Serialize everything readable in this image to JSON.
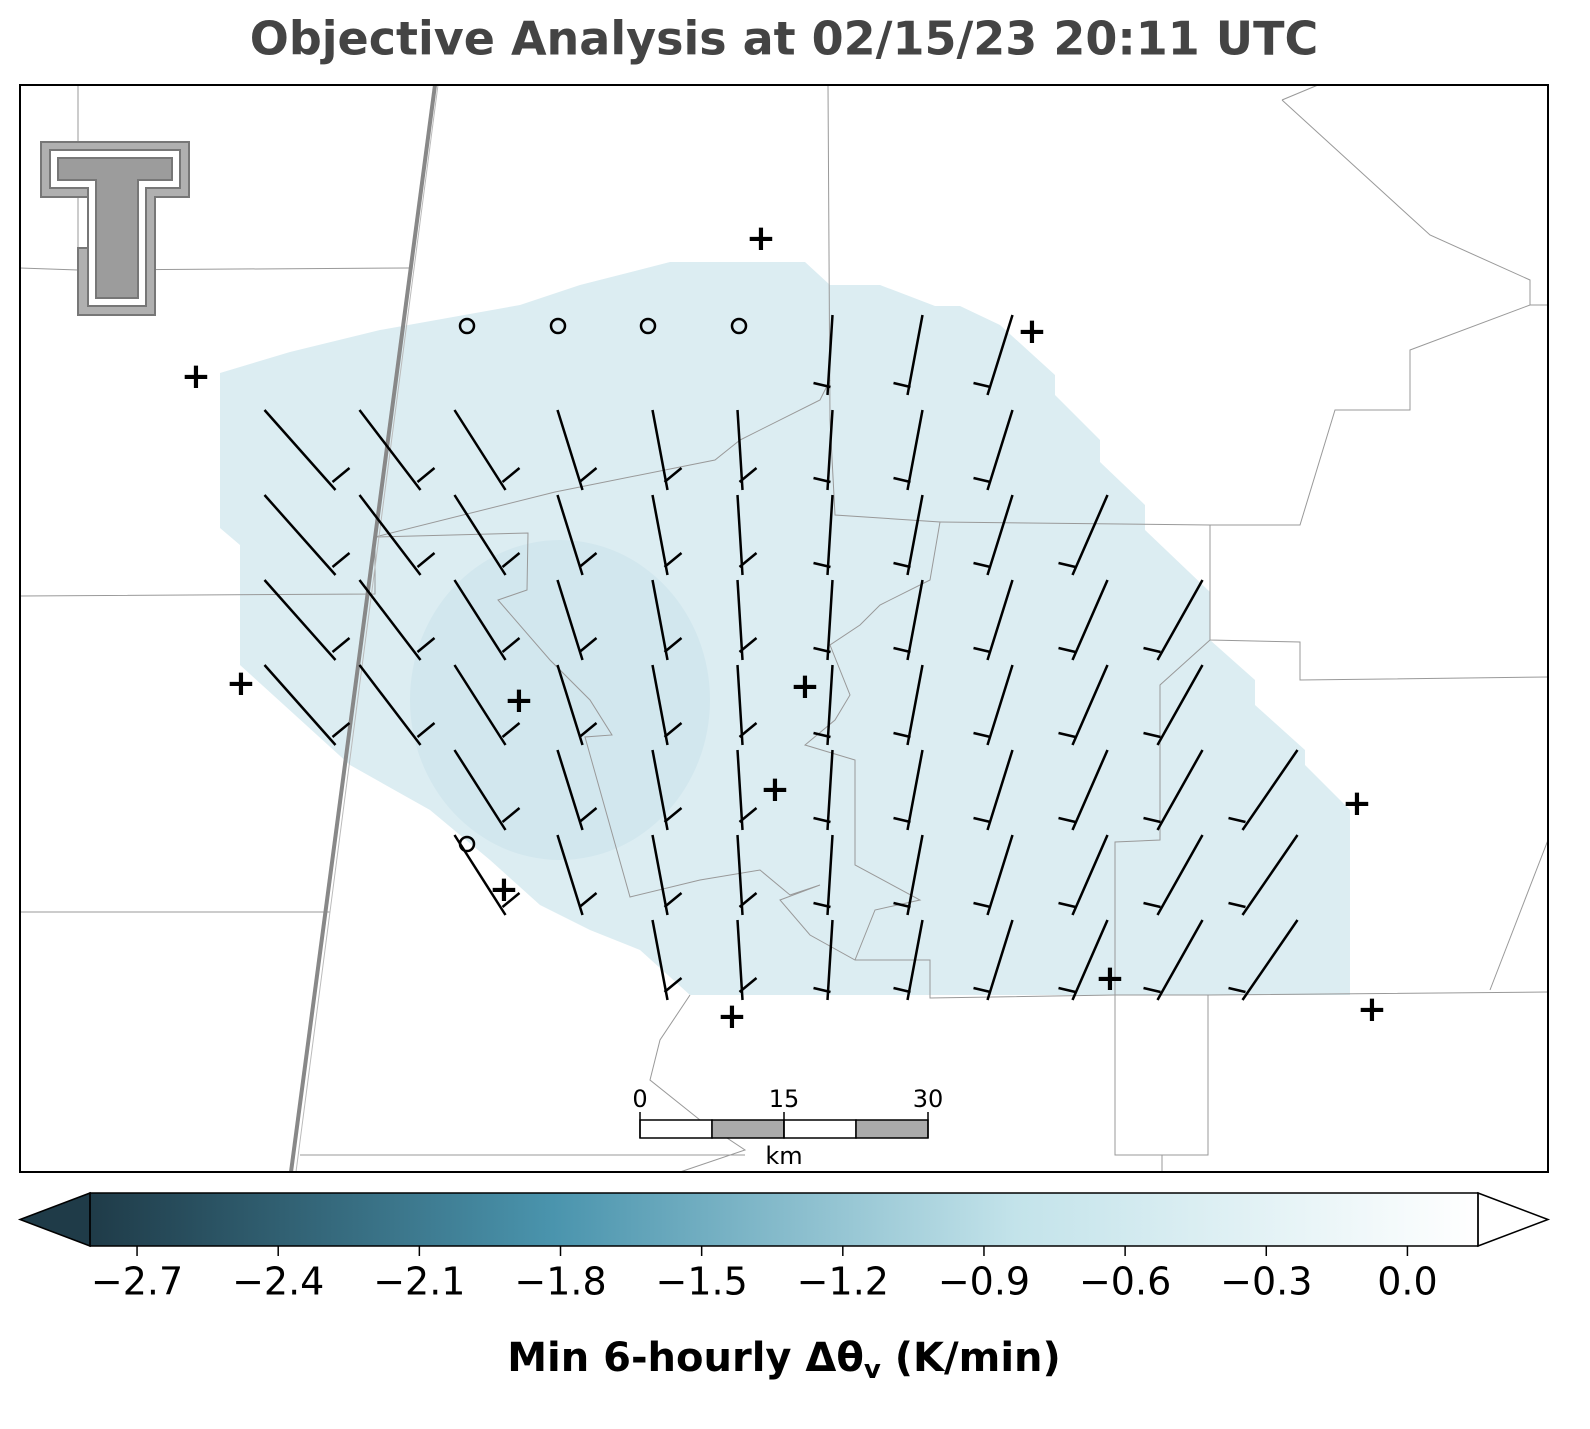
{
  "title": "Objective Analysis at 02/15/23 20:11 UTC",
  "colorbar": {
    "label_main": "Min 6-hourly Δθ",
    "label_sub": "v",
    "label_unit": " (K/min)",
    "clim": [
      -2.8,
      0.15
    ],
    "ticks": [
      {
        "value": -2.7,
        "label": "−2.7"
      },
      {
        "value": -2.4,
        "label": "−2.4"
      },
      {
        "value": -2.1,
        "label": "−2.1"
      },
      {
        "value": -1.8,
        "label": "−1.8"
      },
      {
        "value": -1.5,
        "label": "−1.5"
      },
      {
        "value": -1.2,
        "label": "−1.2"
      },
      {
        "value": -0.9,
        "label": "−0.9"
      },
      {
        "value": -0.6,
        "label": "−0.6"
      },
      {
        "value": -0.3,
        "label": "−0.3"
      },
      {
        "value": 0,
        "label": "0.0"
      }
    ],
    "colors": [
      "#1f3b48",
      "#4a94ad",
      "#c3e3ea",
      "#ffffff"
    ]
  },
  "scale_bar": {
    "ticks": [
      0,
      15,
      30
    ],
    "unit": "km"
  }
}
